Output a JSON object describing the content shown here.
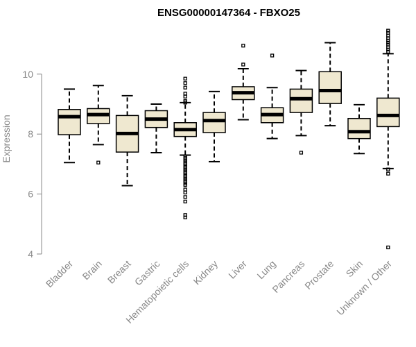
{
  "chart_data": {
    "type": "boxplot",
    "title": "ENSG00000147364 - FBXO25",
    "xlabel": "",
    "ylabel": "Expression",
    "ylim": [
      4,
      11.6
    ],
    "yticks": [
      4,
      6,
      8,
      10
    ],
    "colors": {
      "box_fill": "#efe8d0",
      "box_stroke": "#000000",
      "axis": "#888888",
      "title": "#000000"
    },
    "categories": [
      "Bladder",
      "Brain",
      "Breast",
      "Gastric",
      "Hematopoietic cells",
      "Kidney",
      "Liver",
      "Lung",
      "Pancreas",
      "Prostate",
      "Skin",
      "Unknown / Other"
    ],
    "boxes": [
      {
        "name": "Bladder",
        "whisker_low": 7.05,
        "q1": 7.98,
        "median": 8.58,
        "q3": 8.82,
        "whisker_high": 9.5,
        "outliers": []
      },
      {
        "name": "Brain",
        "whisker_low": 7.65,
        "q1": 8.35,
        "median": 8.65,
        "q3": 8.85,
        "whisker_high": 9.62,
        "outliers": [
          7.05
        ]
      },
      {
        "name": "Breast",
        "whisker_low": 6.28,
        "q1": 7.4,
        "median": 8.02,
        "q3": 8.62,
        "whisker_high": 9.28,
        "outliers": []
      },
      {
        "name": "Gastric",
        "whisker_low": 7.38,
        "q1": 8.22,
        "median": 8.5,
        "q3": 8.78,
        "whisker_high": 9.0,
        "outliers": []
      },
      {
        "name": "Hematopoietic cells",
        "whisker_low": 7.3,
        "q1": 7.92,
        "median": 8.15,
        "q3": 8.38,
        "whisker_high": 9.05,
        "outliers": [
          9.85,
          9.7,
          9.55,
          9.35,
          9.25,
          9.1,
          9.05,
          7.25,
          7.2,
          7.15,
          7.1,
          7.05,
          7.0,
          6.95,
          6.9,
          6.85,
          6.8,
          6.75,
          6.7,
          6.65,
          6.6,
          6.55,
          6.5,
          6.45,
          6.4,
          6.35,
          6.3,
          6.15,
          6.05,
          5.9,
          5.75,
          5.3,
          5.22
        ]
      },
      {
        "name": "Kidney",
        "whisker_low": 7.08,
        "q1": 8.05,
        "median": 8.45,
        "q3": 8.72,
        "whisker_high": 9.42,
        "outliers": []
      },
      {
        "name": "Liver",
        "whisker_low": 8.48,
        "q1": 9.15,
        "median": 9.38,
        "q3": 9.58,
        "whisker_high": 10.18,
        "outliers": [
          10.95,
          10.32
        ]
      },
      {
        "name": "Lung",
        "whisker_low": 7.85,
        "q1": 8.38,
        "median": 8.65,
        "q3": 8.88,
        "whisker_high": 9.55,
        "outliers": [
          10.62
        ]
      },
      {
        "name": "Pancreas",
        "whisker_low": 7.95,
        "q1": 8.72,
        "median": 9.18,
        "q3": 9.5,
        "whisker_high": 10.12,
        "outliers": [
          7.38
        ]
      },
      {
        "name": "Prostate",
        "whisker_low": 8.28,
        "q1": 9.02,
        "median": 9.45,
        "q3": 10.08,
        "whisker_high": 11.05,
        "outliers": []
      },
      {
        "name": "Skin",
        "whisker_low": 7.35,
        "q1": 7.85,
        "median": 8.08,
        "q3": 8.52,
        "whisker_high": 8.98,
        "outliers": []
      },
      {
        "name": "Unknown / Other",
        "whisker_low": 6.85,
        "q1": 8.25,
        "median": 8.62,
        "q3": 9.2,
        "whisker_high": 10.68,
        "outliers": [
          11.45,
          11.38,
          11.28,
          11.2,
          11.12,
          11.05,
          10.98,
          10.9,
          10.82,
          10.75,
          6.82,
          6.68,
          4.22
        ]
      }
    ]
  }
}
